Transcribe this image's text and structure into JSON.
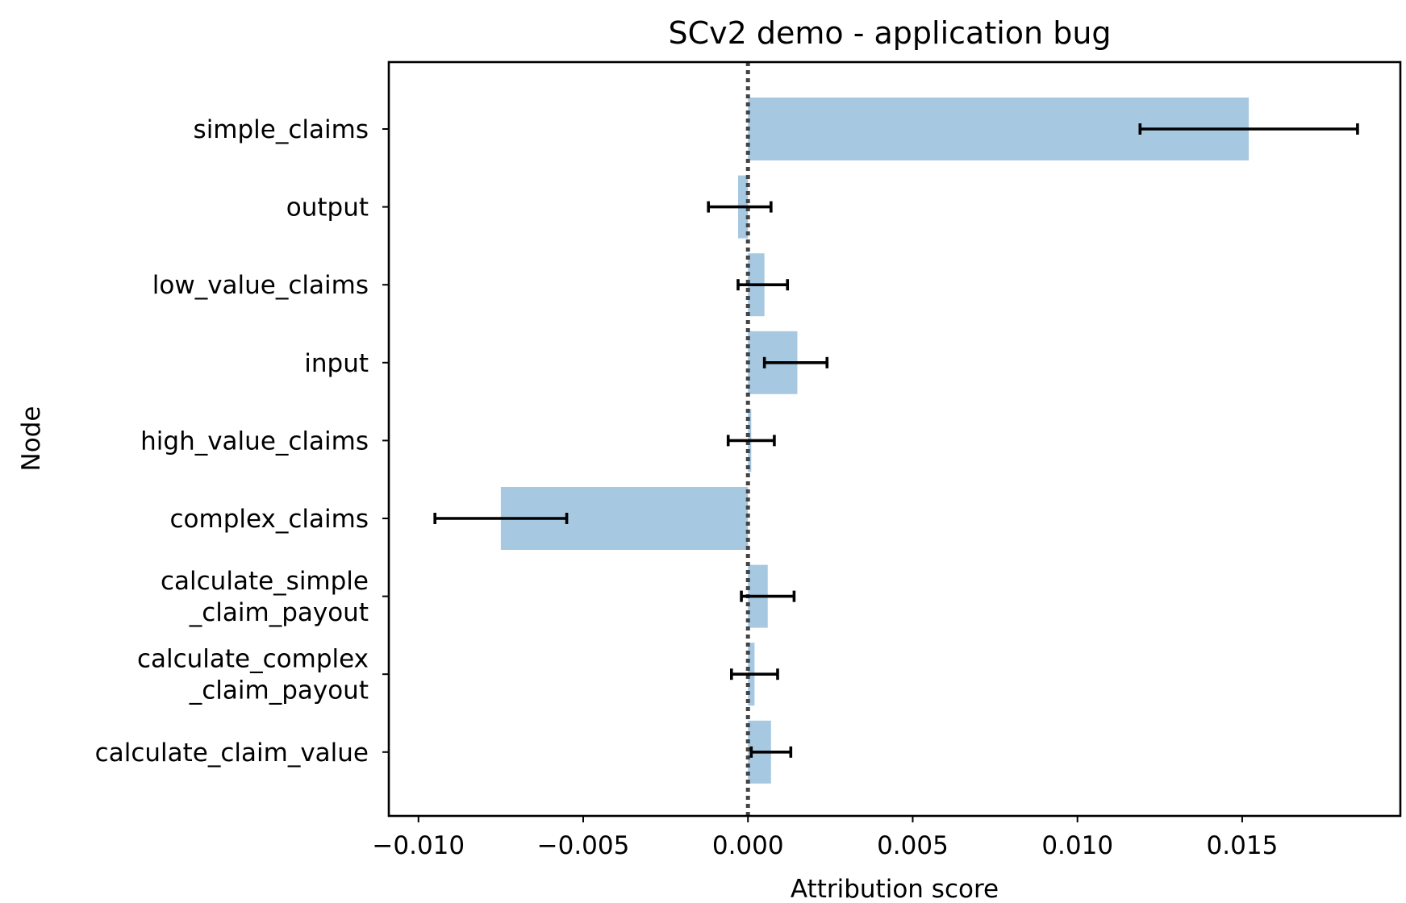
{
  "chart_data": {
    "type": "bar",
    "orientation": "horizontal",
    "title": "SCv2 demo - application bug",
    "xlabel": "Attribution score",
    "ylabel": "Node",
    "xlim": [
      -0.0109,
      0.0198
    ],
    "xticks": [
      -0.01,
      -0.005,
      0.0,
      0.005,
      0.01,
      0.015
    ],
    "xtick_labels": [
      "−0.010",
      "−0.005",
      "0.000",
      "0.005",
      "0.010",
      "0.015"
    ],
    "categories": [
      [
        "simple_claims"
      ],
      [
        "output"
      ],
      [
        "low_value_claims"
      ],
      [
        "input"
      ],
      [
        "high_value_claims"
      ],
      [
        "complex_claims"
      ],
      [
        "calculate_simple",
        "_claim_payout"
      ],
      [
        "calculate_complex",
        "_claim_payout"
      ],
      [
        "calculate_claim_value"
      ]
    ],
    "values": [
      0.0152,
      -0.0003,
      0.0005,
      0.0015,
      0.0001,
      -0.0075,
      0.0006,
      0.0002,
      0.0007
    ],
    "error_low": [
      0.0119,
      -0.0012,
      -0.0003,
      0.0005,
      -0.0006,
      -0.0095,
      -0.0002,
      -0.0005,
      0.0001
    ],
    "error_high": [
      0.0185,
      0.0007,
      0.0012,
      0.0024,
      0.0008,
      -0.0055,
      0.0014,
      0.0009,
      0.0013
    ],
    "reference_line": 0.0,
    "colors": {
      "bar": "#a6c8e1",
      "errorbar": "#000000",
      "reference": "#444444",
      "frame": "#000000"
    },
    "grid": false
  }
}
